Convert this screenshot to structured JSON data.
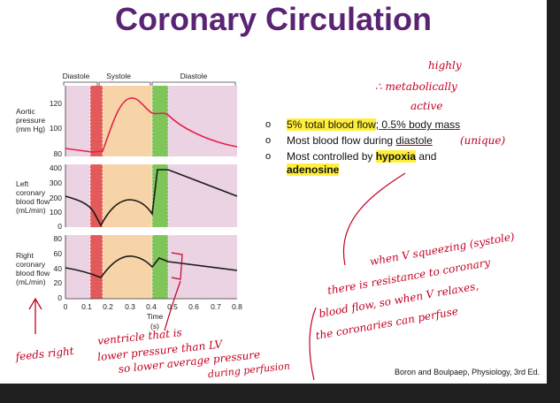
{
  "slide": {
    "title": "Coronary Circulation",
    "citation": "Boron and Boulpaep, Physiology, 3rd Ed."
  },
  "figure": {
    "phases": [
      "Diastole",
      "Systole",
      "Diastole"
    ],
    "panels": [
      {
        "label_lines": [
          "Aortic",
          "pressure",
          "(mm Hg)"
        ],
        "ticks": [
          "120",
          "100",
          "80"
        ]
      },
      {
        "label_lines": [
          "Left",
          "coronary",
          "blood flow",
          "(mL/min)"
        ],
        "ticks": [
          "400",
          "300",
          "200",
          "100",
          "0"
        ]
      },
      {
        "label_lines": [
          "Right",
          "coronary",
          "blood flow",
          "(mL/min)"
        ],
        "ticks": [
          "80",
          "60",
          "40",
          "20",
          "0"
        ]
      }
    ],
    "x_ticks": [
      "0",
      "0.1",
      "0.2",
      "0.3",
      "0.4",
      "0.5",
      "0.6",
      "0.7",
      "0.8"
    ],
    "x_label_lines": [
      "Time",
      "(s)"
    ]
  },
  "bullets": {
    "b1a": "5% total blood flow",
    "b1b": "; 0.5% body mass",
    "b2a": "Most blood flow during ",
    "b2b": "diastole",
    "b3a": "Most controlled by ",
    "b3b": "hypoxia",
    "b3c": " and",
    "b3d": "adenosine",
    "marker": "o"
  },
  "annotations": {
    "top_right": [
      "highly",
      "∴ metabolically",
      "active"
    ],
    "diastole_note": "(unique)",
    "arrow_note": [
      "when V squeezing (systole)",
      "there is resistance to coronary",
      "blood flow, so when V relaxes,",
      "the coronaries can perfuse"
    ],
    "left_note": [
      "feeds right",
      "ventricle that is",
      "lower pressure than LV",
      "so lower average pressure",
      "during perfusion"
    ]
  },
  "colors": {
    "title": "#5a2373",
    "diastole_band": "#ecd3e4",
    "isovolumic_contraction": "#e25a5a",
    "ejection": "#f7d4a8",
    "isovolumic_relaxation": "#7fc55a",
    "trace_aortic": "#e8204a",
    "trace_flow": "#1a1a1a",
    "ink": "#c40020",
    "highlight": "#ffef3a"
  }
}
